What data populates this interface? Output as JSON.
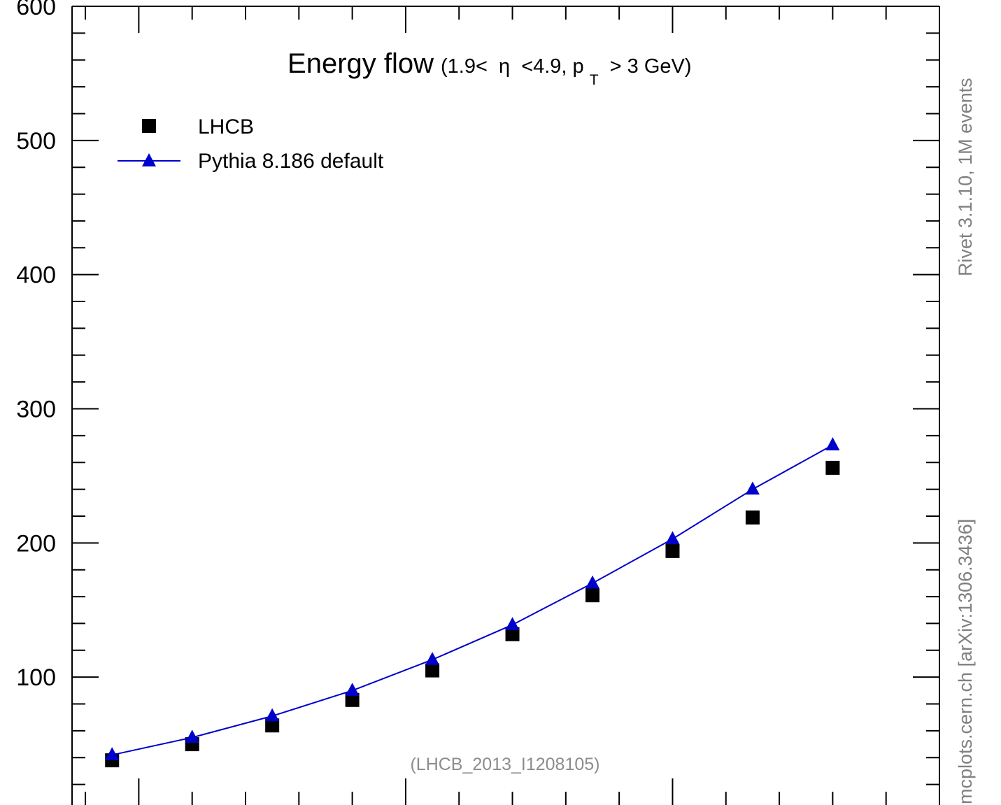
{
  "chart_data": {
    "type": "scatter",
    "title": "Energy flow",
    "subtitle": "(1.9< η <4.9, p_T > 3 GeV)",
    "subtitle_parts": {
      "open": "(1.9<",
      "eta": "η",
      "mid": "<4.9, p",
      "sub": "T",
      "close": "> 3 GeV)"
    },
    "xlabel": "",
    "ylabel": "",
    "ylim": [
      0,
      600
    ],
    "xlim": [
      1.75,
      5.0
    ],
    "y_ticks": [
      100,
      200,
      300,
      400,
      500,
      600
    ],
    "grid": false,
    "legend_position": "top-left",
    "annotation": "(LHCB_2013_I1208105)",
    "series": [
      {
        "name": "LHCB",
        "marker": "square",
        "color": "#000000",
        "x": [
          1.9,
          2.2,
          2.5,
          2.8,
          3.1,
          3.4,
          3.7,
          4.0,
          4.3,
          4.6
        ],
        "y": [
          38,
          50,
          64,
          83,
          105,
          132,
          161,
          194,
          219,
          256
        ]
      },
      {
        "name": "Pythia 8.186 default",
        "marker": "triangle",
        "color": "#0000cc",
        "line": true,
        "x": [
          1.9,
          2.2,
          2.5,
          2.8,
          3.1,
          3.4,
          3.7,
          4.0,
          4.3,
          4.6
        ],
        "y": [
          42,
          55,
          71,
          90,
          113,
          139,
          170,
          203,
          240,
          273
        ]
      }
    ]
  },
  "side_labels": {
    "rivet": "Rivet 3.1.10,  1M events",
    "mcplots": "mcplots.cern.ch [arXiv:1306.3436]"
  },
  "colors": {
    "axis": "#000000",
    "side_text": "#808080",
    "annotation": "#8c8c8c"
  }
}
